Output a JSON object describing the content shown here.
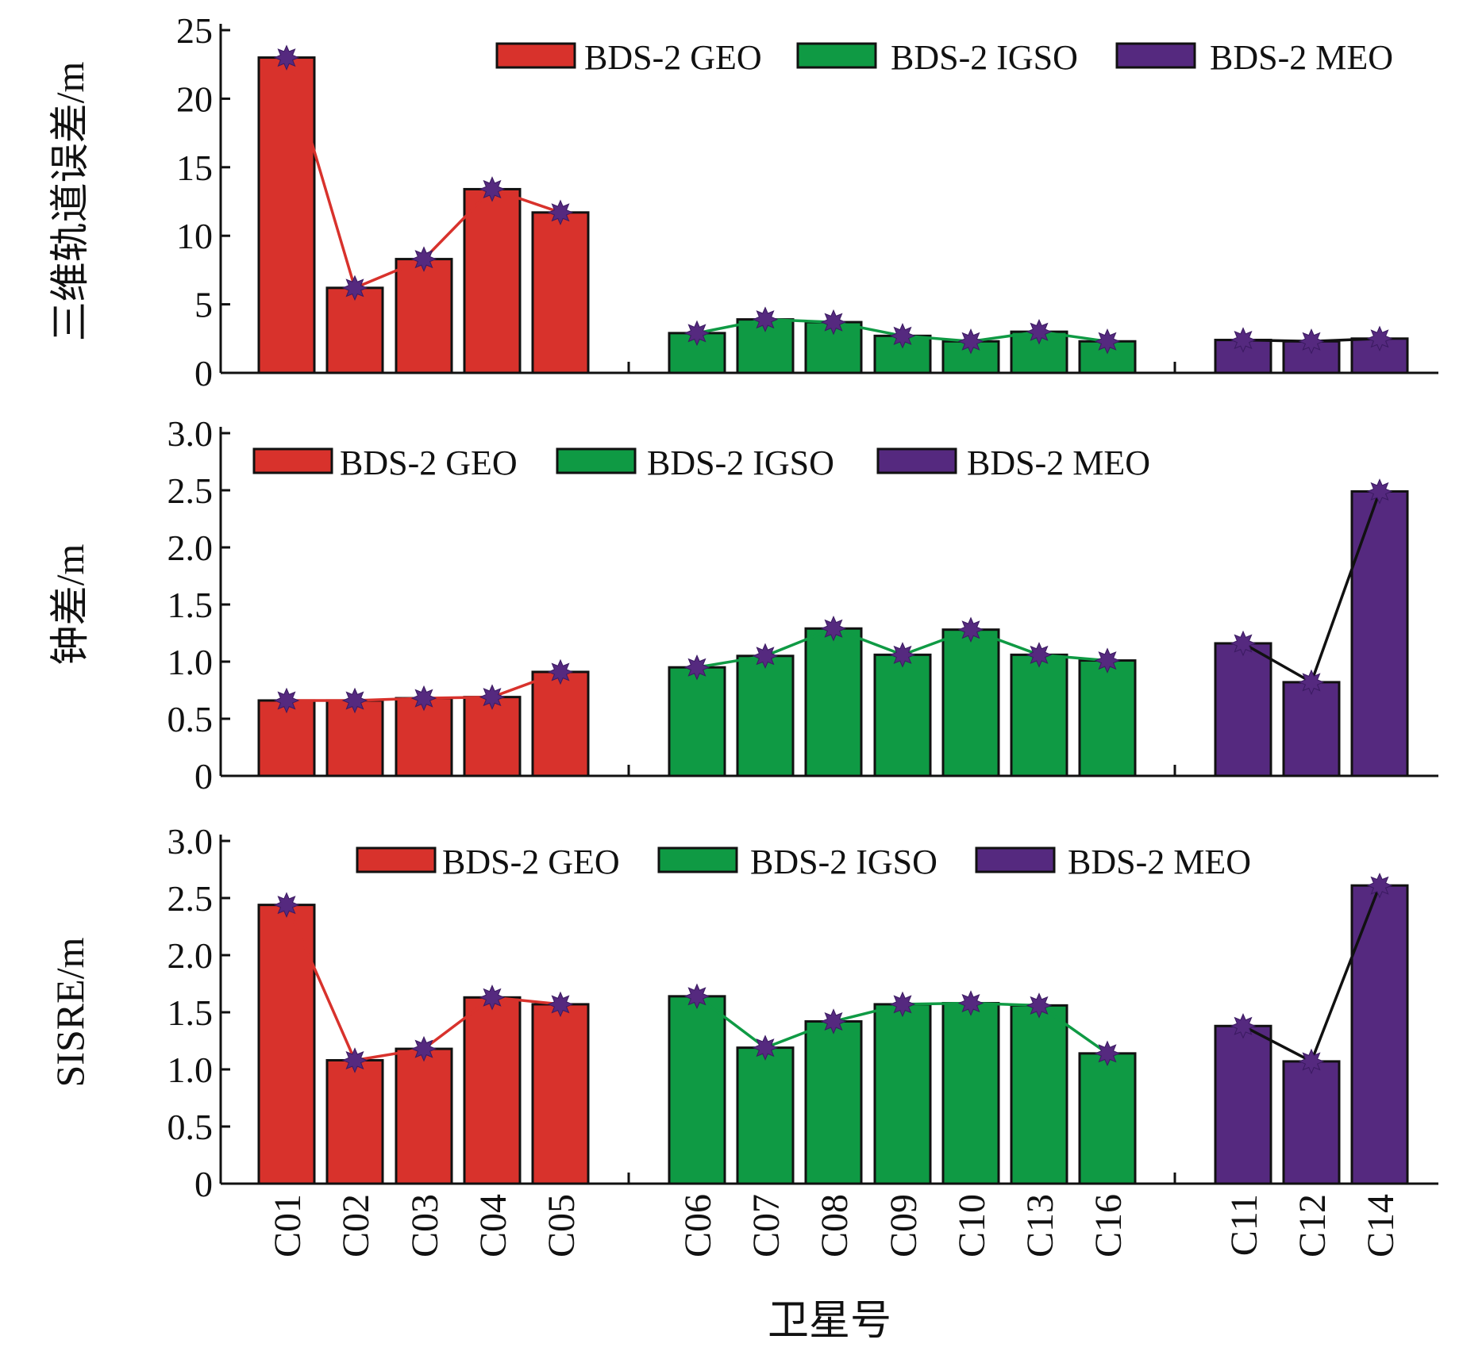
{
  "colors": {
    "geo": "#d8322c",
    "igso": "#0f9a44",
    "meo": "#55297f",
    "marker": "#55297f",
    "axis": "#111111",
    "line_meo": "#111111"
  },
  "xlabel": "卫星号",
  "categories": [
    "C01",
    "C02",
    "C03",
    "C04",
    "C05",
    "C06",
    "C07",
    "C08",
    "C09",
    "C10",
    "C13",
    "C16",
    "C11",
    "C12",
    "C14"
  ],
  "groups": [
    {
      "key": "geo",
      "name": "BDS-2 GEO",
      "categories": [
        "C01",
        "C02",
        "C03",
        "C04",
        "C05"
      ]
    },
    {
      "key": "igso",
      "name": "BDS-2 IGSO",
      "categories": [
        "C06",
        "C07",
        "C08",
        "C09",
        "C10",
        "C13",
        "C16"
      ]
    },
    {
      "key": "meo",
      "name": "BDS-2 MEO",
      "categories": [
        "C11",
        "C12",
        "C14"
      ]
    }
  ],
  "chart_data": [
    {
      "type": "bar",
      "ylabel": "三维轨道误差/m",
      "ylim": [
        0,
        25
      ],
      "yticks": [
        "0",
        "5",
        "10",
        "15",
        "20",
        "25"
      ],
      "ytick_values": [
        0,
        5,
        10,
        15,
        20,
        25
      ],
      "legend_position": "top-right",
      "series": [
        {
          "name": "BDS-2 GEO",
          "categories": [
            "C01",
            "C02",
            "C03",
            "C04",
            "C05"
          ],
          "values": [
            23.0,
            6.2,
            8.3,
            13.4,
            11.7
          ]
        },
        {
          "name": "BDS-2 IGSO",
          "categories": [
            "C06",
            "C07",
            "C08",
            "C09",
            "C10",
            "C13",
            "C16"
          ],
          "values": [
            2.9,
            3.9,
            3.7,
            2.7,
            2.3,
            3.0,
            2.3
          ]
        },
        {
          "name": "BDS-2 MEO",
          "categories": [
            "C11",
            "C12",
            "C14"
          ],
          "values": [
            2.4,
            2.3,
            2.5
          ]
        }
      ]
    },
    {
      "type": "bar",
      "ylabel": "钟差/m",
      "ylim": [
        0,
        3.0
      ],
      "yticks": [
        "0",
        "0.5",
        "1.0",
        "1.5",
        "2.0",
        "2.5",
        "3.0"
      ],
      "ytick_values": [
        0,
        0.5,
        1.0,
        1.5,
        2.0,
        2.5,
        3.0
      ],
      "legend_position": "top-left",
      "series": [
        {
          "name": "BDS-2 GEO",
          "categories": [
            "C01",
            "C02",
            "C03",
            "C04",
            "C05"
          ],
          "values": [
            0.66,
            0.66,
            0.68,
            0.69,
            0.91
          ]
        },
        {
          "name": "BDS-2 IGSO",
          "categories": [
            "C06",
            "C07",
            "C08",
            "C09",
            "C10",
            "C13",
            "C16"
          ],
          "values": [
            0.95,
            1.05,
            1.29,
            1.06,
            1.28,
            1.06,
            1.01
          ]
        },
        {
          "name": "BDS-2 MEO",
          "categories": [
            "C11",
            "C12",
            "C14"
          ],
          "values": [
            1.16,
            0.82,
            2.49
          ]
        }
      ]
    },
    {
      "type": "bar",
      "ylabel": "SISRE/m",
      "ylim": [
        0,
        3.0
      ],
      "yticks": [
        "0",
        "0.5",
        "1.0",
        "1.5",
        "2.0",
        "2.5",
        "3.0"
      ],
      "ytick_values": [
        0,
        0.5,
        1.0,
        1.5,
        2.0,
        2.5,
        3.0
      ],
      "legend_position": "top-center",
      "series": [
        {
          "name": "BDS-2 GEO",
          "categories": [
            "C01",
            "C02",
            "C03",
            "C04",
            "C05"
          ],
          "values": [
            2.44,
            1.08,
            1.18,
            1.63,
            1.57
          ]
        },
        {
          "name": "BDS-2 IGSO",
          "categories": [
            "C06",
            "C07",
            "C08",
            "C09",
            "C10",
            "C13",
            "C16"
          ],
          "values": [
            1.64,
            1.19,
            1.42,
            1.57,
            1.58,
            1.56,
            1.14
          ]
        },
        {
          "name": "BDS-2 MEO",
          "categories": [
            "C11",
            "C12",
            "C14"
          ],
          "values": [
            1.38,
            1.07,
            2.61
          ]
        }
      ]
    }
  ]
}
